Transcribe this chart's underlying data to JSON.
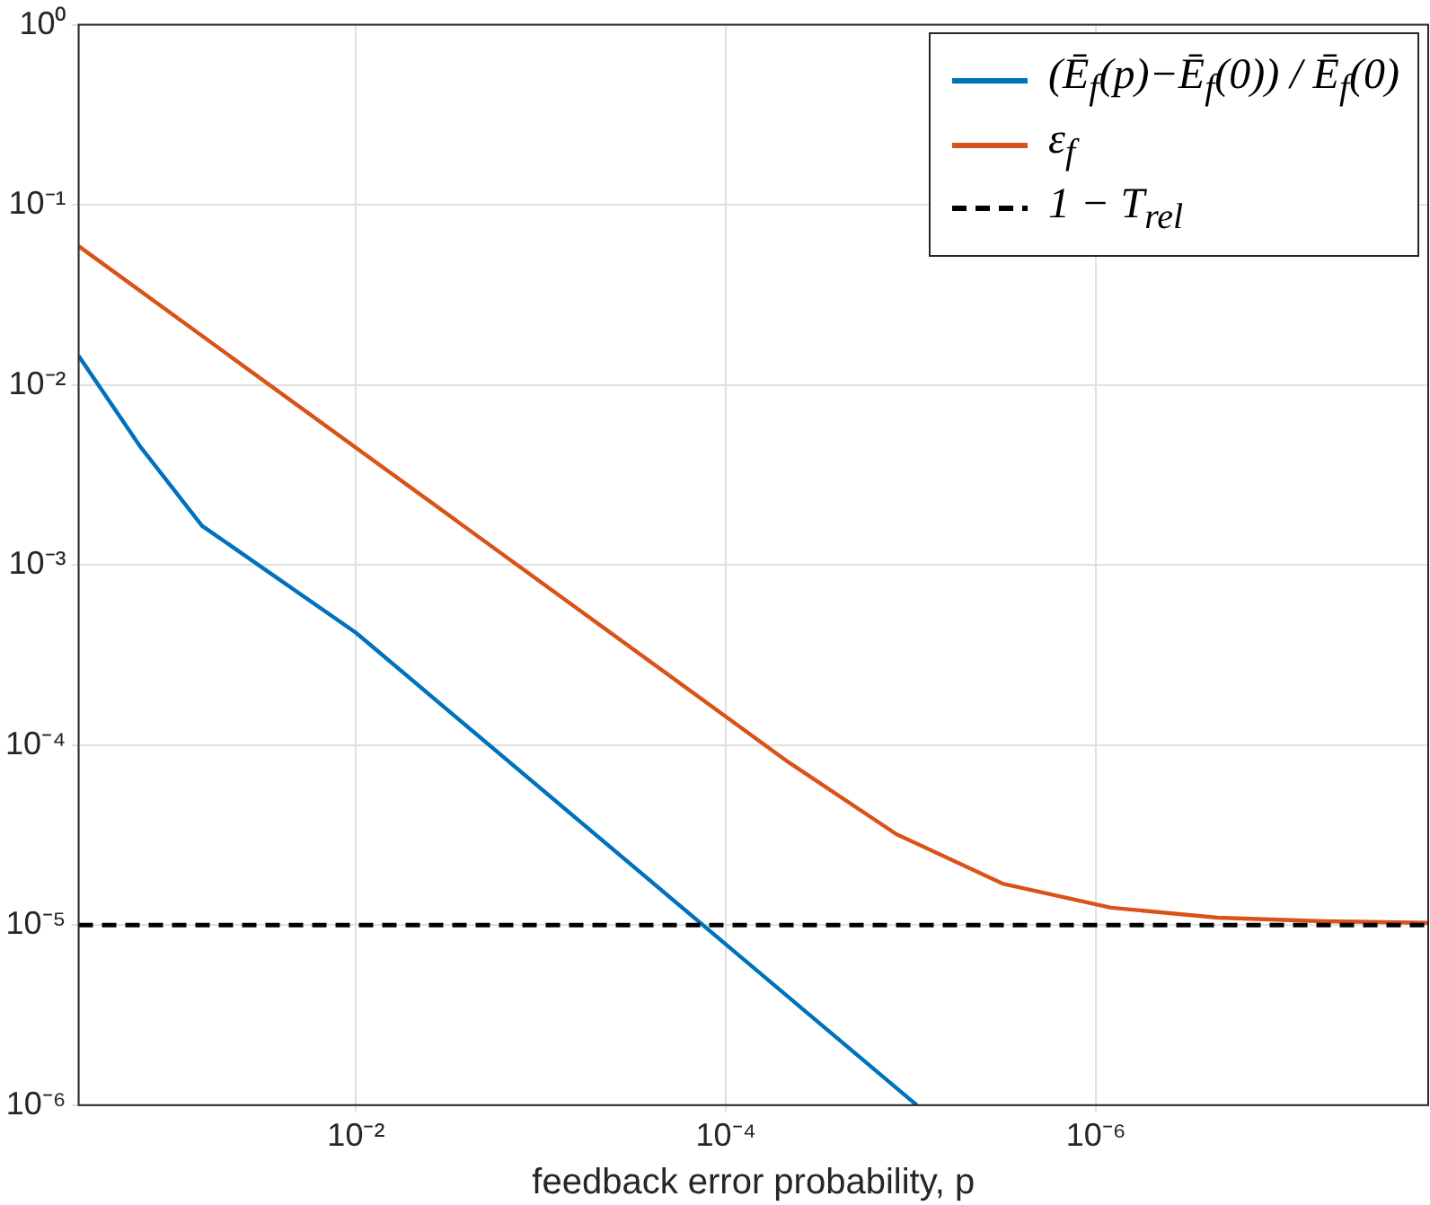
{
  "chart_data": {
    "type": "line",
    "xlabel": "feedback error probability, p",
    "log": "xy",
    "grid": true,
    "legend": "top right",
    "marker": "none",
    "line_style": "solid",
    "xlim": [
      0.316,
      1.6e-08
    ],
    "ylim": [
      1e-06,
      1
    ],
    "xticks": [
      {
        "value": 0.01,
        "label": "10⁻²"
      },
      {
        "value": 0.0001,
        "label": "10⁻⁴"
      },
      {
        "value": 1e-06,
        "label": "10⁻⁶"
      }
    ],
    "yticks": [
      {
        "value": 1e-06,
        "label": "10⁻⁶"
      },
      {
        "value": 1e-05,
        "label": "10⁻⁵"
      },
      {
        "value": 0.0001,
        "label": "10⁻⁴"
      },
      {
        "value": 0.001,
        "label": "10⁻³"
      },
      {
        "value": 0.01,
        "label": "10⁻²"
      },
      {
        "value": 0.1,
        "label": "10⁻¹"
      },
      {
        "value": 1,
        "label": "10⁰"
      }
    ],
    "series": [
      {
        "name": "(Ē$_{f}$(p)−Ē$_{f}$(0)) / Ē$_{f}$(0)",
        "color": "#0072bd",
        "x": [
          0.316,
          0.148,
          0.068,
          0.01,
          0.0001,
          9.3e-06
        ],
        "values": [
          0.0145,
          0.0046,
          0.00165,
          0.00042,
          7.8e-06,
          1e-06
        ]
      },
      {
        "name": "ε$_{f}$",
        "color": "#d95319",
        "x": [
          0.316,
          4.57e-05,
          1.2e-05,
          3.2e-06,
          8.3e-07,
          2.2e-07,
          5.9e-08,
          1.6e-08
        ],
        "values": [
          0.059,
          8e-05,
          3.2e-05,
          1.7e-05,
          1.25e-05,
          1.1e-05,
          1.05e-05,
          1.03e-05
        ]
      }
    ],
    "ref_lines": [
      {
        "axis": "y",
        "value": 1e-05,
        "label": "1 − T$_{rel}$",
        "color": "#000000",
        "line_style": "dashed"
      }
    ]
  }
}
